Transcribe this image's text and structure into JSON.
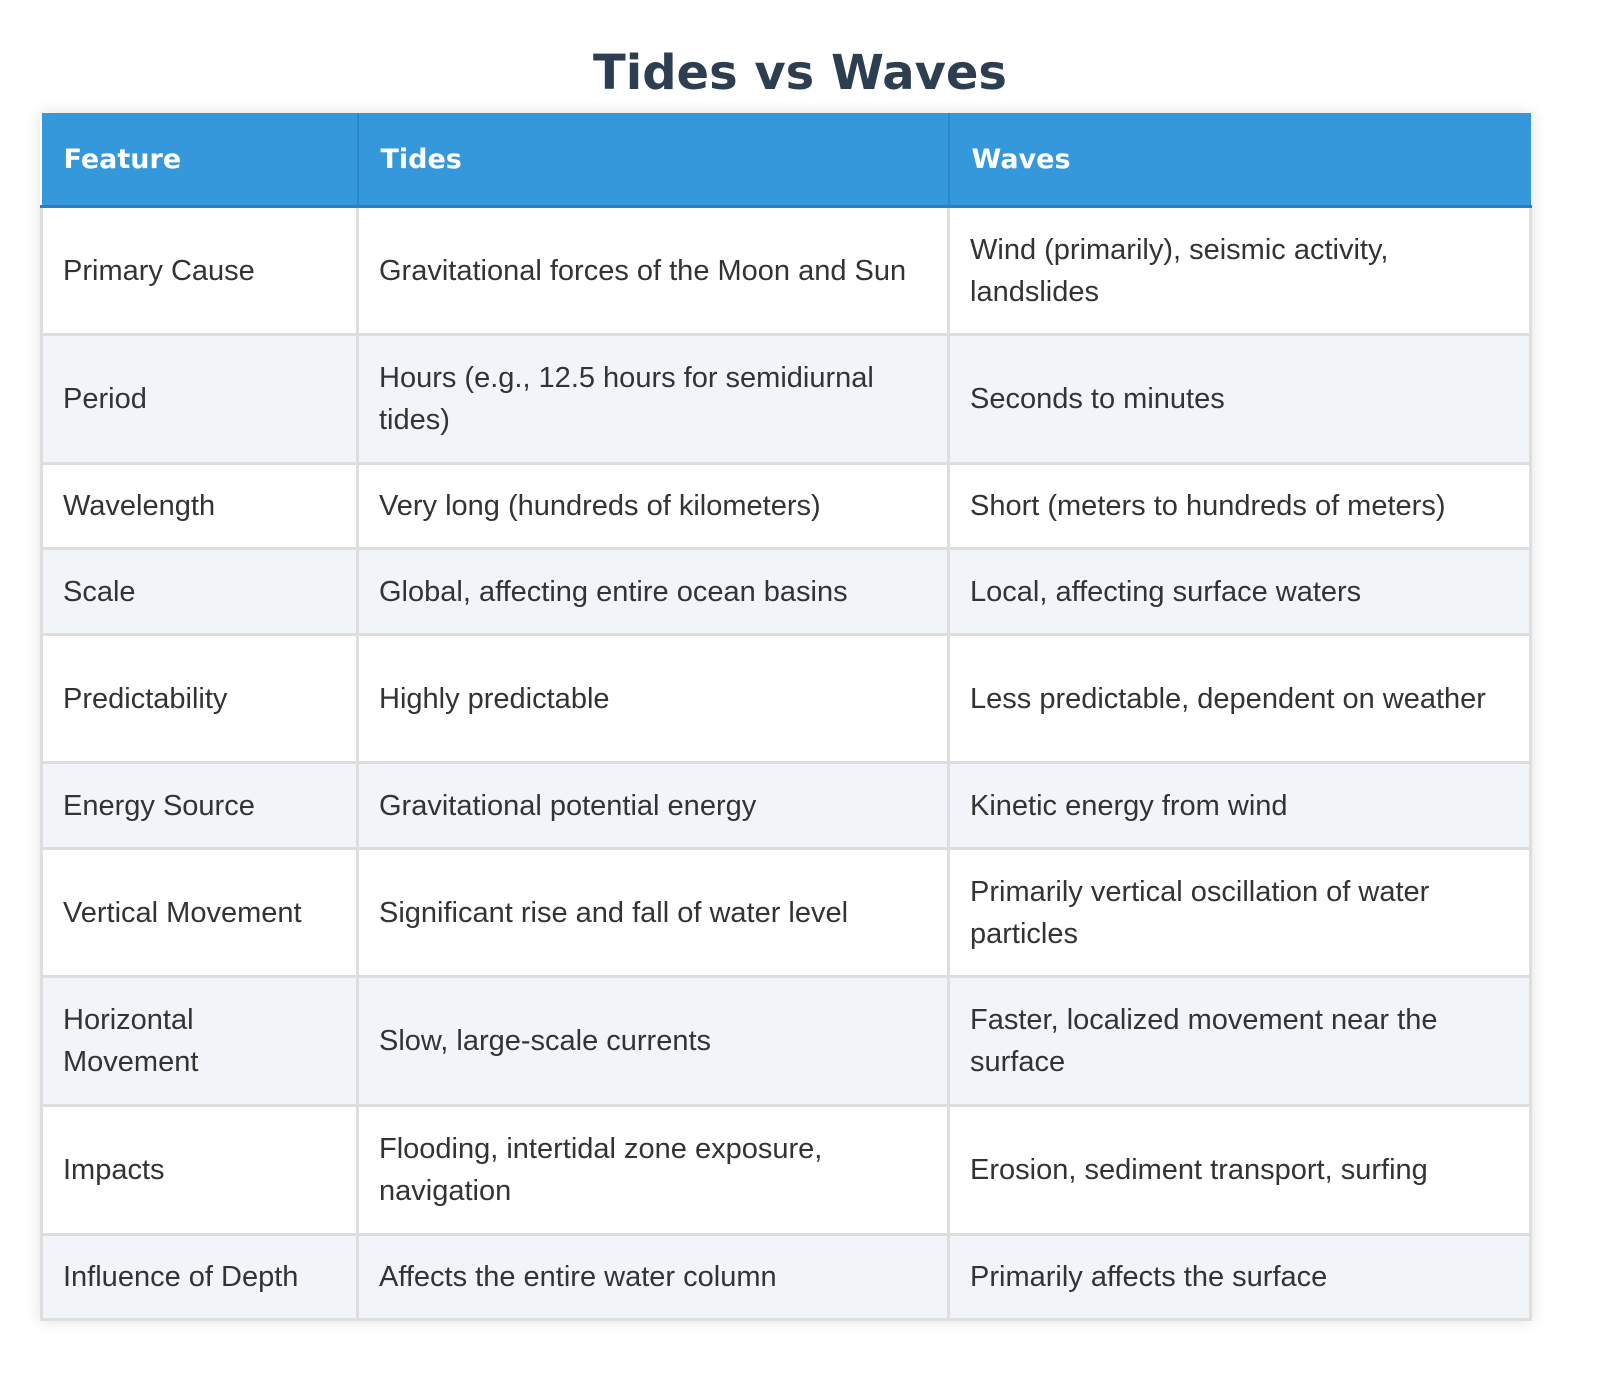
{
  "title": "Tides vs Waves",
  "headers": [
    "Feature",
    "Tides",
    "Waves"
  ],
  "rows": [
    [
      "Primary Cause",
      "Gravitational forces of the Moon and Sun",
      "Wind (primarily), seismic activity, landslides"
    ],
    [
      "Period",
      "Hours (e.g., 12.5 hours for semidiurnal tides)",
      "Seconds to minutes"
    ],
    [
      "Wavelength",
      "Very long (hundreds of kilometers)",
      "Short (meters to hundreds of meters)"
    ],
    [
      "Scale",
      "Global, affecting entire ocean basins",
      "Local, affecting surface waters"
    ],
    [
      "Predictability",
      "Highly predictable",
      "Less predictable, dependent on weather"
    ],
    [
      "Energy Source",
      "Gravitational potential energy",
      "Kinetic energy from wind"
    ],
    [
      "Vertical Movement",
      "Significant rise and fall of water level",
      "Primarily vertical oscillation of water particles"
    ],
    [
      "Horizontal Movement",
      "Slow, large-scale currents",
      "Faster, localized movement near the surface"
    ],
    [
      "Impacts",
      "Flooding, intertidal zone exposure, navigation",
      "Erosion, sediment transport, surfing"
    ],
    [
      "Influence of Depth",
      "Affects the entire water column",
      "Primarily affects the surface"
    ]
  ],
  "colors": {
    "header_bg": "#3498db",
    "title": "#2c3e50",
    "row_alt": "#f1f4f9"
  }
}
